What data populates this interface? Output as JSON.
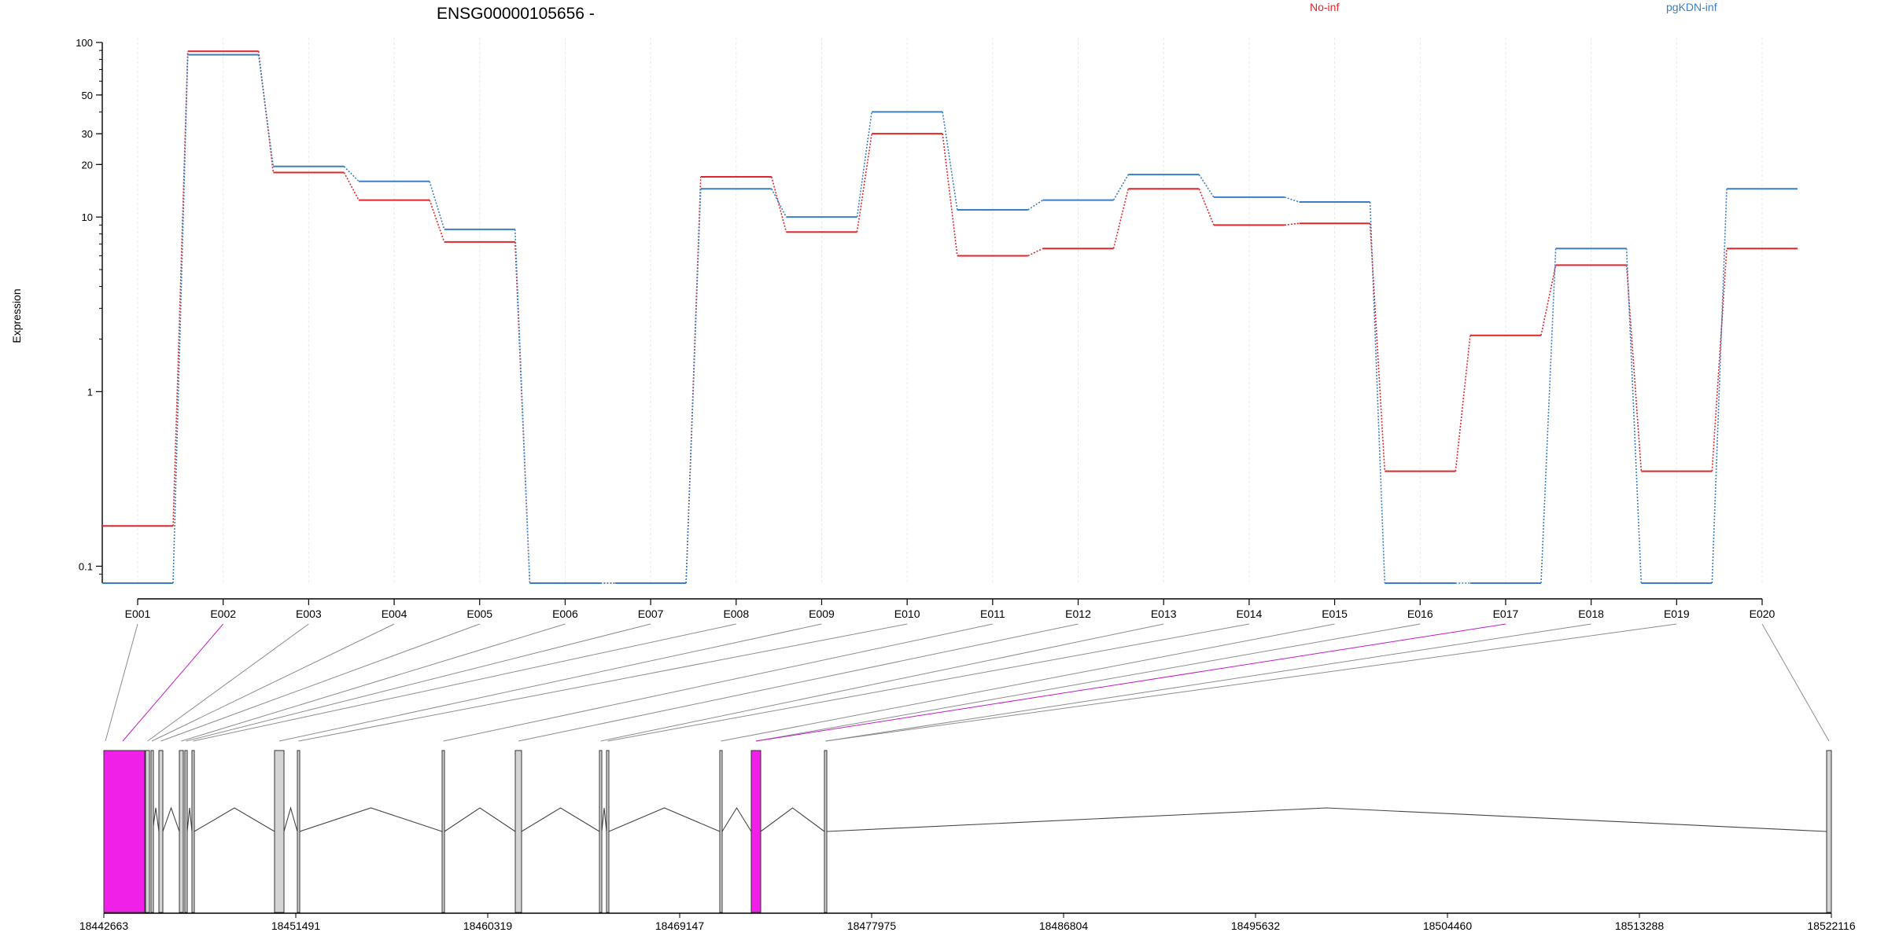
{
  "chart_data": {
    "type": "line",
    "title": "ENSG00000105656 -",
    "ylabel": "Expression",
    "yscale": "log",
    "ylim": [
      0.08,
      100
    ],
    "yticks": [
      0.1,
      1,
      10,
      20,
      30,
      50,
      100
    ],
    "ytick_labels": [
      "0.1",
      "1",
      "10",
      "20",
      "30",
      "50",
      "100"
    ],
    "categories": [
      "E001",
      "E002",
      "E003",
      "E004",
      "E005",
      "E006",
      "E007",
      "E008",
      "E009",
      "E010",
      "E011",
      "E012",
      "E013",
      "E014",
      "E015",
      "E016",
      "E017",
      "E018",
      "E019",
      "E020"
    ],
    "series": [
      {
        "name": "No-inf",
        "color": "#e0262b",
        "values": [
          0.17,
          89,
          18,
          12.5,
          7.2,
          0.08,
          0.08,
          17,
          8.2,
          30,
          6.0,
          6.6,
          14.5,
          9.0,
          9.2,
          0.35,
          2.1,
          5.3,
          0.35,
          6.6
        ]
      },
      {
        "name": "pgKDN-inf",
        "color": "#3a7fc4",
        "values": [
          0.08,
          85,
          19.5,
          16,
          8.5,
          0.08,
          0.08,
          14.5,
          10,
          40,
          11,
          12.5,
          17.5,
          13,
          12.2,
          0.08,
          0.08,
          6.6,
          0.08,
          14.5
        ]
      }
    ],
    "gene_model": {
      "coord_ticks": [
        "18442663",
        "18451491",
        "18460319",
        "18469147",
        "18477975",
        "18486804",
        "18495632",
        "18504460",
        "18513288",
        "18522116"
      ],
      "highlight_color": "#f020e8",
      "exon_fill": "#d4d4d4",
      "highlighted_exons": [
        "E002",
        "E017"
      ]
    }
  }
}
